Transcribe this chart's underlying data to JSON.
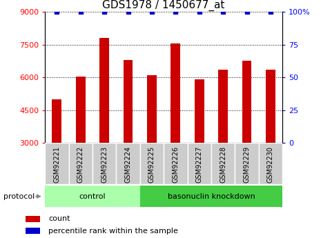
{
  "title": "GDS1978 / 1450677_at",
  "categories": [
    "GSM92221",
    "GSM92222",
    "GSM92223",
    "GSM92224",
    "GSM92225",
    "GSM92226",
    "GSM92227",
    "GSM92228",
    "GSM92229",
    "GSM92230"
  ],
  "bar_values": [
    5000,
    6050,
    7800,
    6800,
    6100,
    7550,
    5900,
    6350,
    6750,
    6350
  ],
  "percentile_values": [
    100,
    100,
    100,
    100,
    100,
    100,
    100,
    100,
    100,
    100
  ],
  "bar_color": "#cc0000",
  "dot_color": "#0000cc",
  "ylim_left": [
    3000,
    9000
  ],
  "ylim_right": [
    0,
    100
  ],
  "yticks_left": [
    3000,
    4500,
    6000,
    7500,
    9000
  ],
  "yticks_right": [
    0,
    25,
    50,
    75,
    100
  ],
  "control_indices": [
    0,
    1,
    2,
    3
  ],
  "knockdown_indices": [
    4,
    5,
    6,
    7,
    8,
    9
  ],
  "control_label": "control",
  "knockdown_label": "basonuclin knockdown",
  "protocol_label": "protocol",
  "group_color_control": "#aaffaa",
  "group_color_knockdown": "#44cc44",
  "xtick_bg": "#cccccc",
  "legend_count_label": "count",
  "legend_pct_label": "percentile rank within the sample",
  "title_fontsize": 11,
  "tick_fontsize": 8,
  "bar_width": 0.4,
  "dot_markersize": 4,
  "grid_color": "black",
  "grid_linestyle": "dotted",
  "grid_linewidth": 0.7
}
